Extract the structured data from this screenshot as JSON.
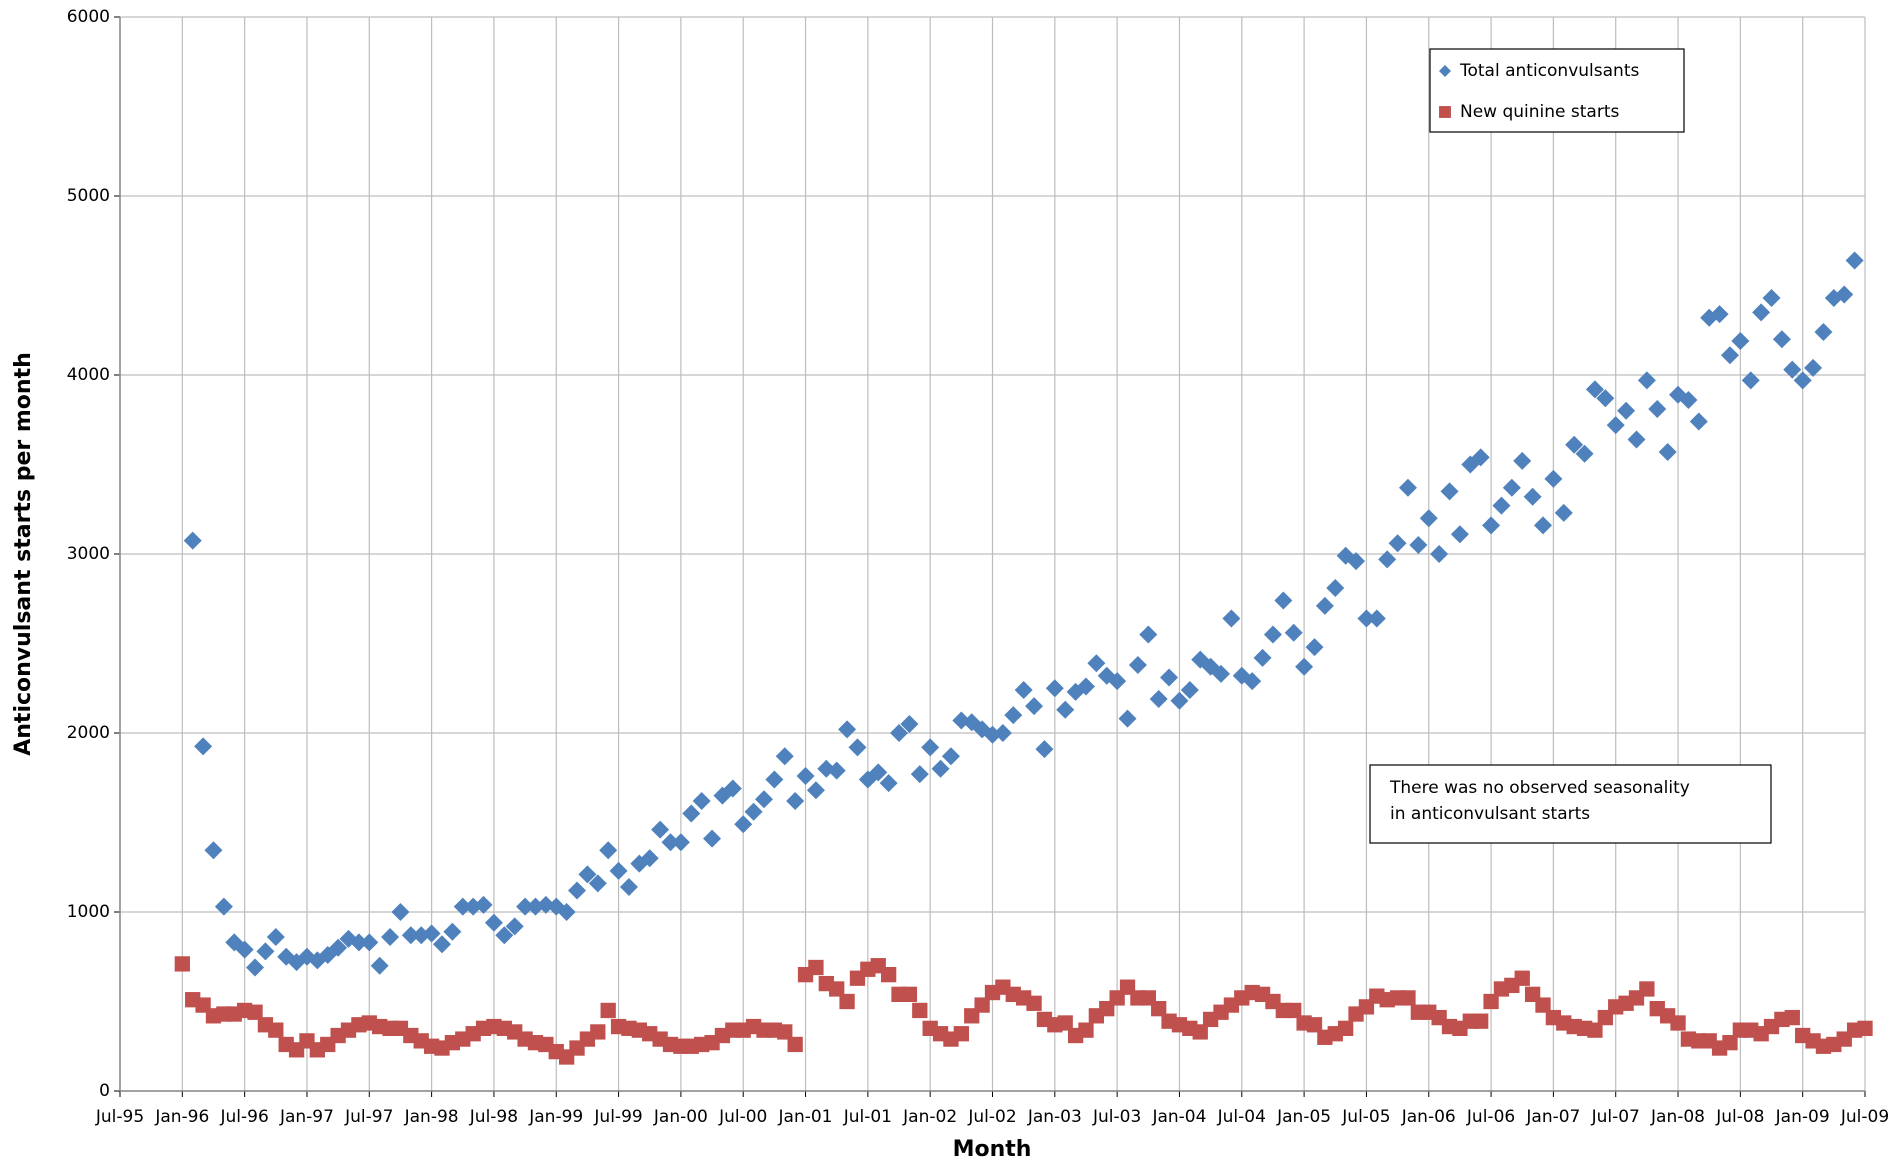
{
  "chart_data": {
    "type": "scatter",
    "xlabel": "Month",
    "ylabel": "Anticonvulsant starts per month",
    "annotation": [
      "There was no observed seasonality",
      "in anticonvulsant starts"
    ],
    "legend": "upper right",
    "grid": true,
    "xlim": [
      "1995-07",
      "2009-07"
    ],
    "ylim": [
      0,
      6000
    ],
    "yticks": [
      0,
      1000,
      2000,
      3000,
      4000,
      5000,
      6000
    ],
    "xticks": [
      {
        "value": "1995-07",
        "label": "Jul-95"
      },
      {
        "value": "1996-01",
        "label": "Jan-96"
      },
      {
        "value": "1996-07",
        "label": "Jul-96"
      },
      {
        "value": "1997-01",
        "label": "Jan-97"
      },
      {
        "value": "1997-07",
        "label": "Jul-97"
      },
      {
        "value": "1998-01",
        "label": "Jan-98"
      },
      {
        "value": "1998-07",
        "label": "Jul-98"
      },
      {
        "value": "1999-01",
        "label": "Jan-99"
      },
      {
        "value": "1999-07",
        "label": "Jul-99"
      },
      {
        "value": "2000-01",
        "label": "Jan-00"
      },
      {
        "value": "2000-07",
        "label": "Jul-00"
      },
      {
        "value": "2001-01",
        "label": "Jan-01"
      },
      {
        "value": "2001-07",
        "label": "Jul-01"
      },
      {
        "value": "2002-01",
        "label": "Jan-02"
      },
      {
        "value": "2002-07",
        "label": "Jul-02"
      },
      {
        "value": "2003-01",
        "label": "Jan-03"
      },
      {
        "value": "2003-07",
        "label": "Jul-03"
      },
      {
        "value": "2004-01",
        "label": "Jan-04"
      },
      {
        "value": "2004-07",
        "label": "Jul-04"
      },
      {
        "value": "2005-01",
        "label": "Jan-05"
      },
      {
        "value": "2005-07",
        "label": "Jul-05"
      },
      {
        "value": "2006-01",
        "label": "Jan-06"
      },
      {
        "value": "2006-07",
        "label": "Jul-06"
      },
      {
        "value": "2007-01",
        "label": "Jan-07"
      },
      {
        "value": "2007-07",
        "label": "Jul-07"
      },
      {
        "value": "2008-01",
        "label": "Jan-08"
      },
      {
        "value": "2008-07",
        "label": "Jul-08"
      },
      {
        "value": "2009-01",
        "label": "Jan-09"
      },
      {
        "value": "2009-07",
        "label": "Jul-09"
      }
    ],
    "x": [
      "1996-01",
      "1996-02",
      "1996-03",
      "1996-04",
      "1996-05",
      "1996-06",
      "1996-07",
      "1996-08",
      "1996-09",
      "1996-10",
      "1996-11",
      "1996-12",
      "1997-01",
      "1997-02",
      "1997-03",
      "1997-04",
      "1997-05",
      "1997-06",
      "1997-07",
      "1997-08",
      "1997-09",
      "1997-10",
      "1997-11",
      "1997-12",
      "1998-01",
      "1998-02",
      "1998-03",
      "1998-04",
      "1998-05",
      "1998-06",
      "1998-07",
      "1998-08",
      "1998-09",
      "1998-10",
      "1998-11",
      "1998-12",
      "1999-01",
      "1999-02",
      "1999-03",
      "1999-04",
      "1999-05",
      "1999-06",
      "1999-07",
      "1999-08",
      "1999-09",
      "1999-10",
      "1999-11",
      "1999-12",
      "2000-01",
      "2000-02",
      "2000-03",
      "2000-04",
      "2000-05",
      "2000-06",
      "2000-07",
      "2000-08",
      "2000-09",
      "2000-10",
      "2000-11",
      "2000-12",
      "2001-01",
      "2001-02",
      "2001-03",
      "2001-04",
      "2001-05",
      "2001-06",
      "2001-07",
      "2001-08",
      "2001-09",
      "2001-10",
      "2001-11",
      "2001-12",
      "2002-01",
      "2002-02",
      "2002-03",
      "2002-04",
      "2002-05",
      "2002-06",
      "2002-07",
      "2002-08",
      "2002-09",
      "2002-10",
      "2002-11",
      "2002-12",
      "2003-01",
      "2003-02",
      "2003-03",
      "2003-04",
      "2003-05",
      "2003-06",
      "2003-07",
      "2003-08",
      "2003-09",
      "2003-10",
      "2003-11",
      "2003-12",
      "2004-01",
      "2004-02",
      "2004-03",
      "2004-04",
      "2004-05",
      "2004-06",
      "2004-07",
      "2004-08",
      "2004-09",
      "2004-10",
      "2004-11",
      "2004-12",
      "2005-01",
      "2005-02",
      "2005-03",
      "2005-04",
      "2005-05",
      "2005-06",
      "2005-07",
      "2005-08",
      "2005-09",
      "2005-10",
      "2005-11",
      "2005-12",
      "2006-01",
      "2006-02",
      "2006-03",
      "2006-04",
      "2006-05",
      "2006-06",
      "2006-07",
      "2006-08",
      "2006-09",
      "2006-10",
      "2006-11",
      "2006-12",
      "2007-01",
      "2007-02",
      "2007-03",
      "2007-04",
      "2007-05",
      "2007-06",
      "2007-07",
      "2007-08",
      "2007-09",
      "2007-10",
      "2007-11",
      "2007-12",
      "2008-01",
      "2008-02",
      "2008-03",
      "2008-04",
      "2008-05",
      "2008-06",
      "2008-07",
      "2008-08",
      "2008-09",
      "2008-10",
      "2008-11",
      "2008-12",
      "2009-01",
      "2009-02",
      "2009-03",
      "2009-04",
      "2009-05",
      "2009-06",
      "2009-07"
    ],
    "series": [
      {
        "name": "Total anticonvulsants",
        "color": "#4f81bd",
        "marker": "diamond",
        "values": [
          null,
          3075,
          1925,
          1345,
          1030,
          830,
          790,
          690,
          780,
          860,
          750,
          720,
          750,
          730,
          760,
          800,
          850,
          830,
          830,
          700,
          860,
          1000,
          870,
          870,
          880,
          820,
          890,
          1030,
          1030,
          1040,
          940,
          870,
          920,
          1030,
          1030,
          1040,
          1030,
          1000,
          1120,
          1210,
          1160,
          1345,
          1230,
          1140,
          1270,
          1300,
          1460,
          1390,
          1390,
          1550,
          1620,
          1410,
          1650,
          1690,
          1490,
          1560,
          1630,
          1740,
          1870,
          1620,
          1760,
          1680,
          1800,
          1790,
          2020,
          1920,
          1740,
          1780,
          1720,
          2000,
          2050,
          1770,
          1920,
          1800,
          1870,
          2070,
          2060,
          2020,
          1990,
          2000,
          2100,
          2240,
          2150,
          1910,
          2250,
          2130,
          2230,
          2260,
          2390,
          2320,
          2290,
          2080,
          2380,
          2550,
          2190,
          2310,
          2180,
          2240,
          2410,
          2370,
          2330,
          2640,
          2320,
          2290,
          2420,
          2550,
          2740,
          2560,
          2370,
          2480,
          2710,
          2810,
          2990,
          2960,
          2640,
          2640,
          2970,
          3060,
          3370,
          3050,
          3200,
          3000,
          3350,
          3110,
          3500,
          3540,
          3160,
          3270,
          3370,
          3520,
          3320,
          3160,
          3420,
          3230,
          3610,
          3560,
          3920,
          3870,
          3720,
          3800,
          3640,
          3970,
          3810,
          3570,
          3890,
          3860,
          3740,
          4320,
          4340,
          4110,
          4190,
          3970,
          4350,
          4430,
          4200,
          4030,
          3970,
          4040,
          4240,
          4430,
          4450,
          4640,
          null
        ]
      },
      {
        "name": "New quinine starts",
        "color": "#c0504d",
        "marker": "square",
        "values": [
          710,
          510,
          480,
          420,
          430,
          430,
          450,
          440,
          370,
          340,
          260,
          230,
          280,
          230,
          260,
          310,
          340,
          370,
          380,
          360,
          350,
          350,
          310,
          280,
          250,
          240,
          270,
          290,
          320,
          350,
          360,
          350,
          330,
          290,
          270,
          260,
          220,
          190,
          240,
          290,
          330,
          450,
          360,
          350,
          340,
          320,
          290,
          260,
          250,
          250,
          260,
          270,
          310,
          340,
          340,
          360,
          340,
          340,
          330,
          260,
          650,
          690,
          600,
          570,
          500,
          630,
          680,
          700,
          650,
          540,
          540,
          450,
          350,
          320,
          290,
          320,
          420,
          480,
          550,
          580,
          540,
          520,
          490,
          400,
          370,
          380,
          310,
          340,
          420,
          460,
          520,
          580,
          520,
          520,
          460,
          390,
          370,
          350,
          330,
          400,
          440,
          480,
          520,
          550,
          540,
          500,
          450,
          450,
          380,
          370,
          300,
          320,
          350,
          430,
          470,
          530,
          510,
          520,
          520,
          440,
          440,
          410,
          360,
          350,
          390,
          390,
          500,
          570,
          590,
          630,
          540,
          480,
          410,
          380,
          360,
          350,
          340,
          410,
          470,
          490,
          520,
          570,
          460,
          420,
          380,
          290,
          280,
          280,
          240,
          270,
          340,
          340,
          320,
          360,
          400,
          410,
          310,
          280,
          250,
          260,
          290,
          340,
          350
        ]
      }
    ]
  }
}
